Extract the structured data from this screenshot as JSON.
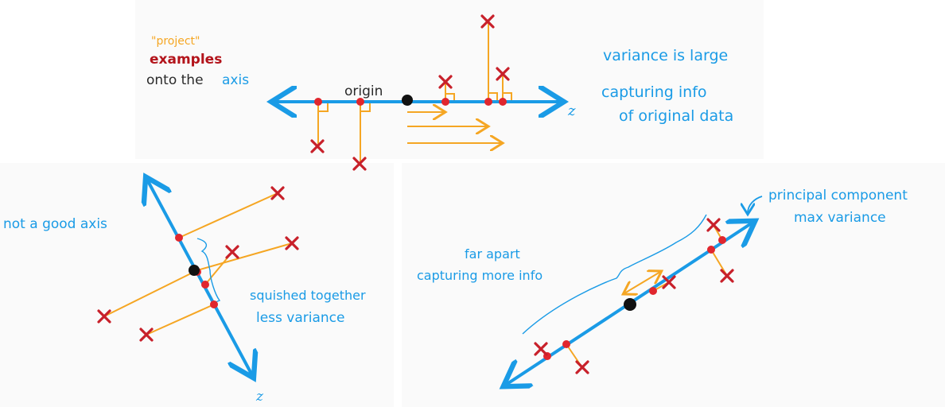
{
  "labels": {
    "project": "\"project\"",
    "examples": "examples",
    "onto_the": "onto the",
    "axis": "axis",
    "origin": "origin",
    "z_top": "z",
    "variance_large": "variance is large",
    "capturing_info": "capturing info",
    "of_original": "of original data",
    "not_good_axis": "not a good axis",
    "squished": "squished together",
    "less_variance": "less variance",
    "z_left": "z",
    "far_apart": "far apart",
    "capturing_more": "capturing more info",
    "principal": "principal component",
    "max_variance": "max variance"
  },
  "colors": {
    "axis": "#1a9be6",
    "projection": "#f5a623",
    "example": "#c8202a",
    "projected_point": "#e0262e",
    "origin": "#111111"
  }
}
